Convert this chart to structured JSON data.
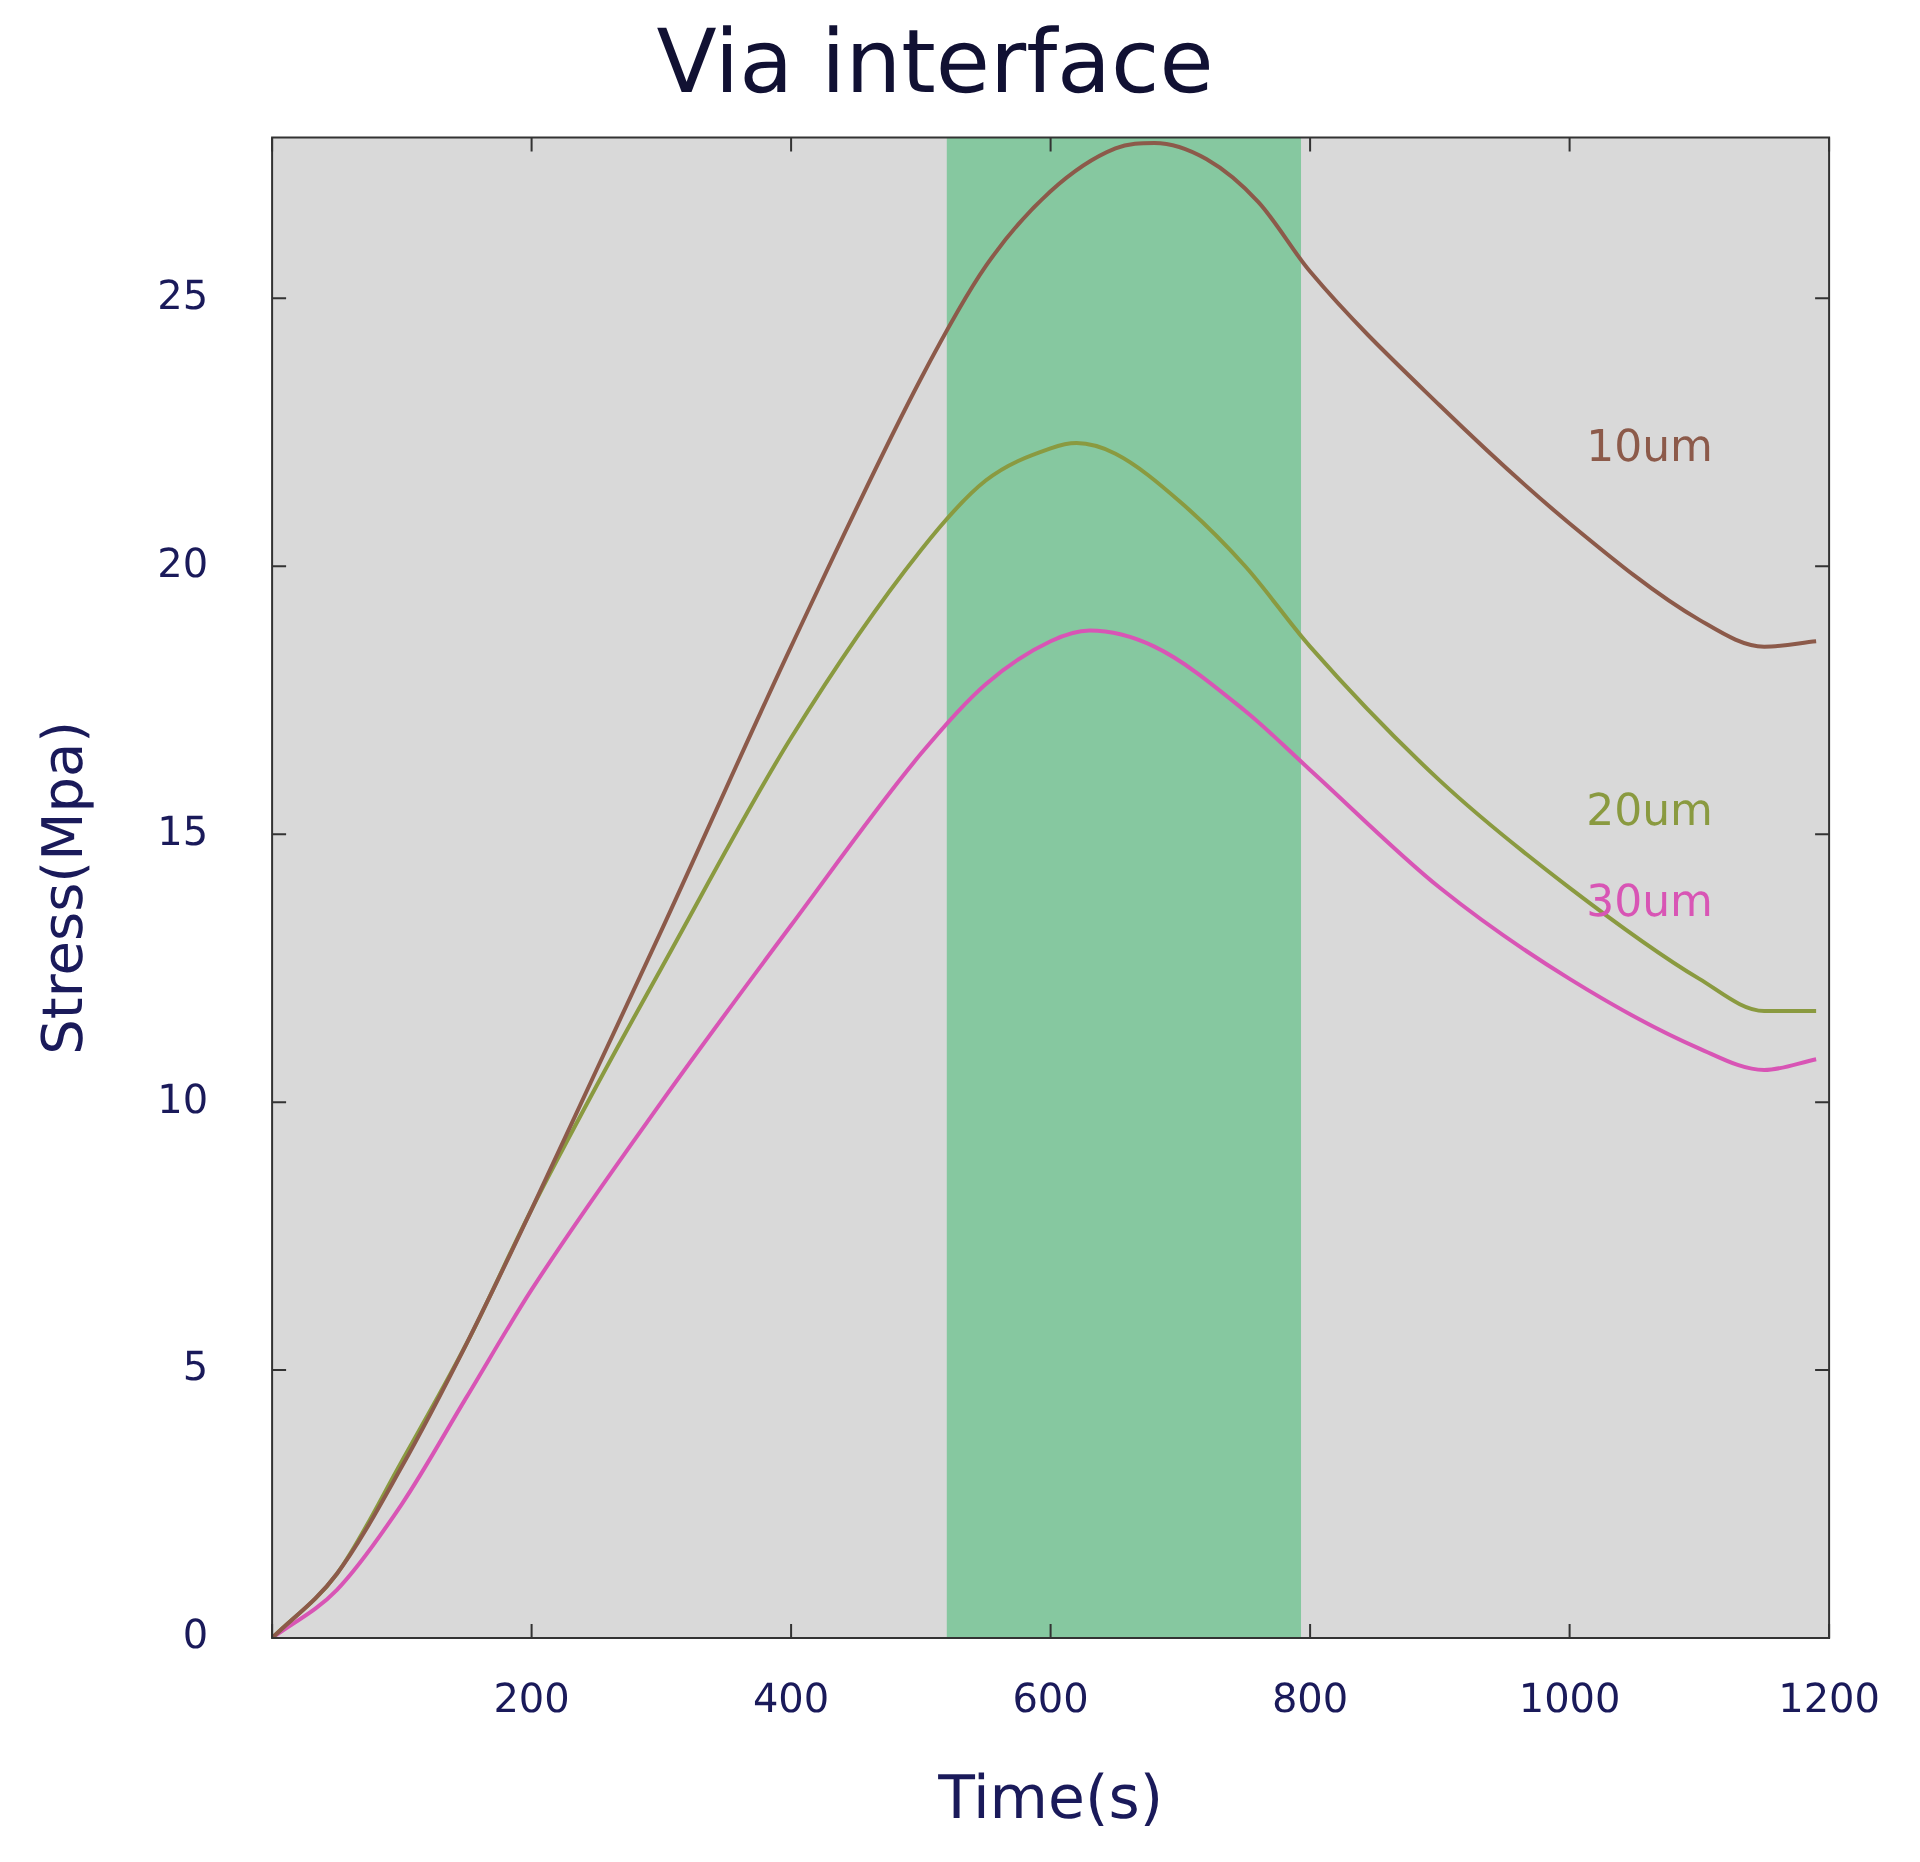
{
  "chart_data": {
    "type": "line",
    "title": "Via interface",
    "xlabel": "Time(s)",
    "ylabel": "Stress(Mpa)",
    "xlim": [
      0,
      1200
    ],
    "xticks": [
      {
        "value": 0,
        "label": null
      },
      200,
      400,
      600,
      800,
      1000,
      1200
    ],
    "ylim": [
      0,
      28
    ],
    "yticks": [
      0,
      5,
      10,
      15,
      20,
      25
    ],
    "grid": false,
    "legend": false,
    "marker": "none",
    "line_style": "solid",
    "bands": [
      {
        "axis": "x",
        "from": 520,
        "to": 793,
        "color": "#86c8a0"
      }
    ],
    "series": [
      {
        "name": "10um",
        "color": "#8c5a4a",
        "x": [
          0,
          50,
          100,
          150,
          200,
          250,
          300,
          400,
          500,
          550,
          600,
          650,
          680,
          720,
          760,
          800,
          900,
          1000,
          1100,
          1150,
          1190
        ],
        "values": [
          0,
          1.2,
          3.2,
          5.5,
          8,
          10.6,
          13.2,
          18.5,
          23.5,
          25.6,
          27,
          27.8,
          27.9,
          27.6,
          26.8,
          25.5,
          23,
          20.8,
          19,
          18.5,
          18.6
        ]
      },
      {
        "name": "20um",
        "color": "#8a9a40",
        "x": [
          0,
          50,
          100,
          150,
          200,
          250,
          300,
          400,
          500,
          550,
          600,
          620,
          650,
          700,
          750,
          800,
          900,
          1000,
          1100,
          1150,
          1190
        ],
        "values": [
          0,
          1.2,
          3.3,
          5.5,
          8,
          10.3,
          12.5,
          16.8,
          20.3,
          21.6,
          22.2,
          22.3,
          22.1,
          21.2,
          20,
          18.5,
          16,
          14,
          12.3,
          11.7,
          11.7
        ]
      },
      {
        "name": "30um",
        "color": "#d855b5",
        "x": [
          0,
          50,
          100,
          150,
          200,
          300,
          400,
          500,
          550,
          600,
          630,
          680,
          750,
          800,
          900,
          1000,
          1100,
          1150,
          1190
        ],
        "values": [
          0,
          0.9,
          2.5,
          4.5,
          6.5,
          10,
          13.3,
          16.5,
          17.8,
          18.6,
          18.8,
          18.5,
          17.3,
          16.2,
          14,
          12.3,
          11,
          10.6,
          10.8
        ]
      }
    ]
  }
}
